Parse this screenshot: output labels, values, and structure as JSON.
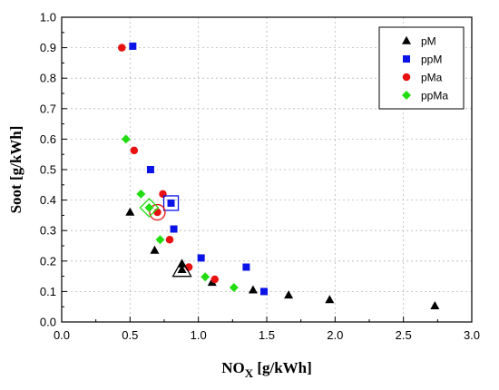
{
  "chart_data": {
    "type": "scatter",
    "xlabel": "NO",
    "xlabel_sub": "X",
    "xlabel_unit": " [g/kWh]",
    "ylabel": "Soot [g/kWh]",
    "xlim": [
      0.0,
      3.0
    ],
    "ylim": [
      0.0,
      1.0
    ],
    "xticks": [
      "0.0",
      "0.5",
      "1.0",
      "1.5",
      "2.0",
      "2.5",
      "3.0"
    ],
    "yticks": [
      "0.0",
      "0.1",
      "0.2",
      "0.3",
      "0.4",
      "0.5",
      "0.6",
      "0.7",
      "0.8",
      "0.9",
      "1.0"
    ],
    "grid": true,
    "legend_position": "top-right",
    "series": [
      {
        "name": "pM",
        "marker": "triangle",
        "color": "#000000",
        "x": [
          0.5,
          0.68,
          0.88,
          1.1,
          1.4,
          1.66,
          1.96,
          2.73
        ],
        "y": [
          0.36,
          0.235,
          0.19,
          0.13,
          0.105,
          0.088,
          0.073,
          0.053
        ],
        "highlight": {
          "x": 0.88,
          "y": 0.172
        }
      },
      {
        "name": "ppM",
        "marker": "square",
        "color": "#0a14e6",
        "x": [
          0.52,
          0.65,
          0.82,
          1.02,
          1.35,
          1.48
        ],
        "y": [
          0.905,
          0.5,
          0.305,
          0.21,
          0.18,
          0.1
        ],
        "highlight": {
          "x": 0.8,
          "y": 0.39
        }
      },
      {
        "name": "pMa",
        "marker": "circle",
        "color": "#e81010",
        "x": [
          0.44,
          0.53,
          0.74,
          0.79,
          0.93,
          1.12
        ],
        "y": [
          0.9,
          0.563,
          0.42,
          0.27,
          0.18,
          0.14
        ],
        "highlight": {
          "x": 0.7,
          "y": 0.36
        }
      },
      {
        "name": "ppMa",
        "marker": "diamond",
        "color": "#22dd10",
        "x": [
          0.47,
          0.58,
          0.72,
          1.05,
          1.26
        ],
        "y": [
          0.6,
          0.42,
          0.27,
          0.148,
          0.113
        ],
        "highlight": {
          "x": 0.64,
          "y": 0.375
        }
      }
    ]
  }
}
